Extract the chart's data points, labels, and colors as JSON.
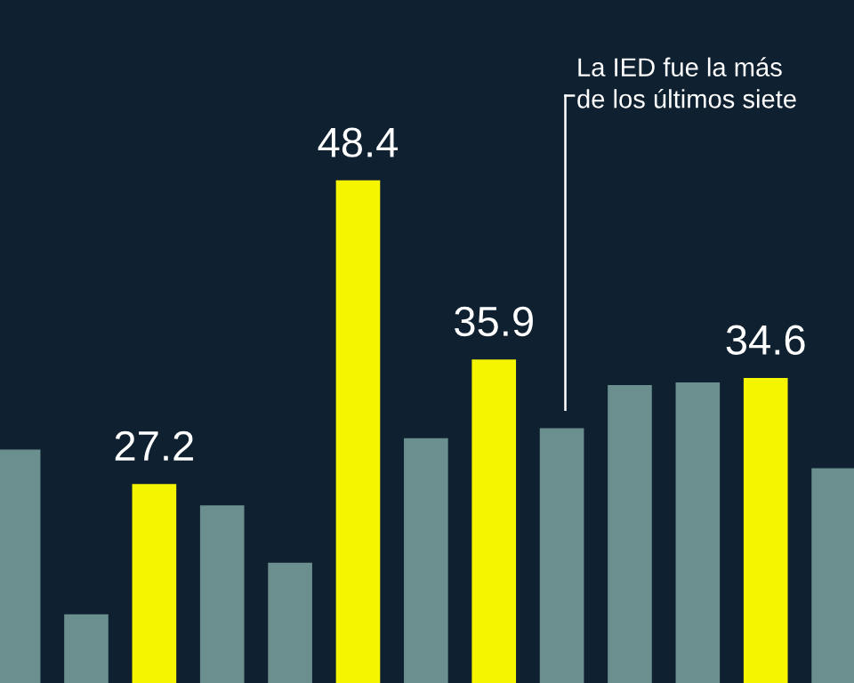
{
  "chart_data": {
    "type": "bar",
    "categories": [
      null,
      null,
      null,
      null,
      null,
      null,
      null,
      null,
      null,
      null,
      null,
      null,
      null
    ],
    "values": [
      29.6,
      18.1,
      27.2,
      25.7,
      21.7,
      48.4,
      30.4,
      35.9,
      31.1,
      34.1,
      34.3,
      34.6,
      28.3
    ],
    "colors": [
      "#6b8e8e",
      "#6b8e8e",
      "#f5f500",
      "#6b8e8e",
      "#6b8e8e",
      "#f5f500",
      "#6b8e8e",
      "#f5f500",
      "#6b8e8e",
      "#6b8e8e",
      "#6b8e8e",
      "#f5f500",
      "#6b8e8e"
    ],
    "value_labels": [
      null,
      null,
      "27.2",
      null,
      null,
      "48.4",
      null,
      "35.9",
      null,
      null,
      null,
      "34.6",
      null
    ],
    "ylim": [
      13.3,
      61
    ],
    "grid": false,
    "annotations": [
      "La IED fue la más\nde los últimos siete"
    ]
  }
}
